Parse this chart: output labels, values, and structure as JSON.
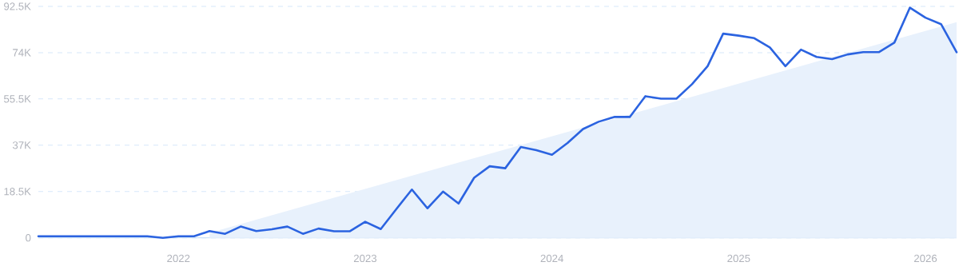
{
  "chart_data": {
    "type": "line",
    "x": [
      "2021-04",
      "2021-05",
      "2021-06",
      "2021-07",
      "2021-08",
      "2021-09",
      "2021-10",
      "2021-11",
      "2021-12",
      "2022-01",
      "2022-02",
      "2022-03",
      "2022-04",
      "2022-05",
      "2022-06",
      "2022-07",
      "2022-08",
      "2022-09",
      "2022-10",
      "2022-11",
      "2022-12",
      "2023-01",
      "2023-02",
      "2023-03",
      "2023-04",
      "2023-05",
      "2023-06",
      "2023-07",
      "2023-08",
      "2023-09",
      "2023-10",
      "2023-11",
      "2023-12",
      "2024-01",
      "2024-02",
      "2024-03",
      "2024-04",
      "2024-05",
      "2024-06",
      "2024-07",
      "2024-08",
      "2024-09",
      "2024-10",
      "2024-11",
      "2024-12",
      "2025-01",
      "2025-02",
      "2025-03",
      "2025-04",
      "2025-05",
      "2025-06",
      "2025-07",
      "2025-08",
      "2025-09",
      "2025-10",
      "2025-11",
      "2025-12",
      "2026-01",
      "2026-02",
      "2026-03"
    ],
    "series": [
      {
        "type": "area",
        "color": "#e8f1fc",
        "x": [
          "2022-03",
          "2026-03"
        ],
        "values": [
          2000,
          86200
        ]
      },
      {
        "color": "#2b63e0",
        "values": [
          600,
          600,
          600,
          600,
          600,
          600,
          600,
          600,
          0,
          600,
          600,
          2700,
          1600,
          4500,
          2700,
          3400,
          4500,
          1600,
          3700,
          2600,
          2600,
          6400,
          3500,
          11500,
          19300,
          11800,
          18500,
          13700,
          24000,
          28600,
          27800,
          36300,
          35000,
          33200,
          37900,
          43500,
          46400,
          48300,
          48300,
          56600,
          55600,
          55600,
          61400,
          68600,
          81600,
          80800,
          79800,
          76100,
          68600,
          75200,
          72300,
          71400,
          73300,
          74200,
          74200,
          78000,
          92000,
          88000,
          85400,
          74200
        ]
      }
    ],
    "xlim": [
      "2021-04",
      "2026-03"
    ],
    "xticks": [
      "2022",
      "2023",
      "2024",
      "2025",
      "2026"
    ],
    "ylim": [
      0,
      92500
    ],
    "yticks": [
      0,
      {
        "value": 18500,
        "label": "18.5K"
      },
      {
        "value": 37000,
        "label": "37K"
      },
      {
        "value": 55500,
        "label": "55.5K"
      },
      {
        "value": 74000,
        "label": "74K"
      },
      {
        "value": 92500,
        "label": "92.5K"
      }
    ],
    "grid": "y"
  }
}
